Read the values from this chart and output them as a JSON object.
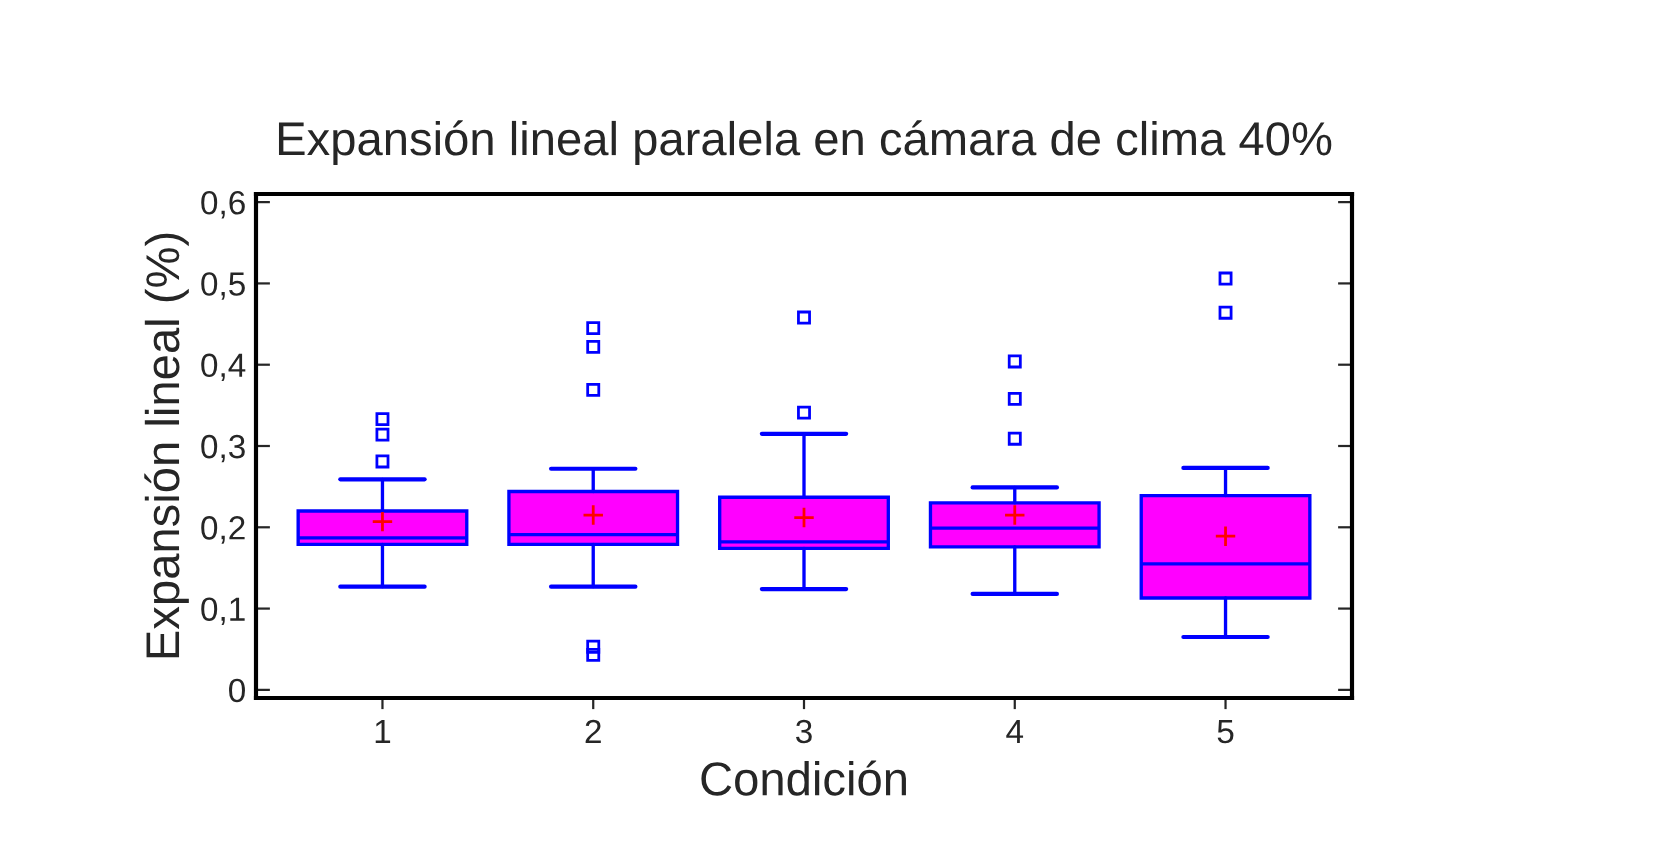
{
  "chart_data": {
    "type": "box",
    "title": "Expansión lineal paralela en cámara de clima 40%",
    "xlabel": "Condición",
    "ylabel": "Expansión lineal (%)",
    "categories": [
      "1",
      "2",
      "3",
      "4",
      "5"
    ],
    "ylim": [
      -0.01,
      0.61
    ],
    "yticks": [
      {
        "value": 0,
        "label": "0"
      },
      {
        "value": 0.1,
        "label": "0,1"
      },
      {
        "value": 0.2,
        "label": "0,2"
      },
      {
        "value": 0.3,
        "label": "0,3"
      },
      {
        "value": 0.4,
        "label": "0,4"
      },
      {
        "value": 0.5,
        "label": "0,5"
      },
      {
        "value": 0.6,
        "label": "0,6"
      }
    ],
    "grid": false,
    "marker": "square",
    "series": [
      {
        "color": "#ff00ff",
        "boxes": [
          {
            "low": 0.127,
            "q1": 0.179,
            "median": 0.187,
            "q3": 0.22,
            "high": 0.259,
            "mean": 0.207,
            "outliers": [
              0.281,
              0.314,
              0.333
            ]
          },
          {
            "low": 0.127,
            "q1": 0.179,
            "median": 0.191,
            "q3": 0.244,
            "high": 0.272,
            "mean": 0.215,
            "outliers": [
              0.043,
              0.053,
              0.369,
              0.422,
              0.445
            ]
          },
          {
            "low": 0.124,
            "q1": 0.174,
            "median": 0.182,
            "q3": 0.237,
            "high": 0.315,
            "mean": 0.212,
            "outliers": [
              0.341,
              0.458
            ]
          },
          {
            "low": 0.118,
            "q1": 0.176,
            "median": 0.199,
            "q3": 0.23,
            "high": 0.249,
            "mean": 0.215,
            "outliers": [
              0.309,
              0.358,
              0.404
            ]
          },
          {
            "low": 0.065,
            "q1": 0.113,
            "median": 0.155,
            "q3": 0.239,
            "high": 0.273,
            "mean": 0.189,
            "outliers": [
              0.464,
              0.506
            ]
          }
        ]
      }
    ]
  }
}
